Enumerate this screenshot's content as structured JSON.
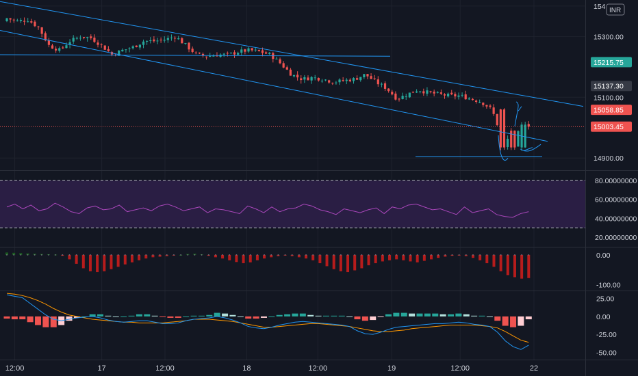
{
  "currency": "INR",
  "colors": {
    "background": "#131722",
    "grid": "#1e222d",
    "up": "#26a69a",
    "down": "#ef5350",
    "trendline": "#2196f3",
    "rsi_line": "#ab47bc",
    "rsi_band": "#2a1e44",
    "hist_pos": "#1b5e20",
    "hist_neg": "#b71c1c",
    "macd_line": "#2196f3",
    "signal_line": "#ff9800",
    "macd_pos": "#26a69a",
    "macd_pos_light": "#b2dfdb",
    "macd_neg": "#ef5350",
    "macd_neg_light": "#ffcdd2"
  },
  "x_axis_labels": [
    "12:00",
    "17",
    "12:00",
    "18",
    "12:00",
    "19",
    "12:00",
    "22"
  ],
  "price_axis_labels": [
    "154",
    "15300.00",
    "15100.00",
    "14900.00"
  ],
  "price_badges": [
    {
      "label": "15215.75",
      "value": 15215.75,
      "color": "#26a69a"
    },
    {
      "label": "15137.30",
      "value": 15137.3,
      "color": "#363a45"
    },
    {
      "label": "15058.85",
      "value": 15058.85,
      "color": "#ef5350"
    },
    {
      "label": "15003.45",
      "value": 15003.45,
      "color": "#ef5350"
    }
  ],
  "rsi_axis_labels": [
    "80.00000000",
    "60.00000000",
    "40.00000000",
    "20.00000000"
  ],
  "osc_axis_labels": [
    "0.00",
    "-100.00"
  ],
  "macd_axis_labels": [
    "25.00",
    "0.00",
    "-25.00",
    "-50.00"
  ],
  "chart_data": [
    {
      "type": "candlestick",
      "panel": "price",
      "ylim": [
        14860,
        15420
      ],
      "x_range": [
        0,
        100
      ],
      "day_markers": [
        {
          "label": "17",
          "x": 18
        },
        {
          "label": "18",
          "x": 45.5
        },
        {
          "label": "19",
          "x": 73
        },
        {
          "label": "22",
          "x": 100
        }
      ],
      "close_path": [
        [
          0,
          15360
        ],
        [
          2,
          15350
        ],
        [
          4,
          15355
        ],
        [
          6,
          15330
        ],
        [
          8,
          15270
        ],
        [
          10,
          15255
        ],
        [
          12,
          15285
        ],
        [
          14,
          15300
        ],
        [
          16,
          15295
        ],
        [
          18,
          15270
        ],
        [
          20,
          15240
        ],
        [
          22,
          15255
        ],
        [
          24,
          15265
        ],
        [
          26,
          15285
        ],
        [
          28,
          15285
        ],
        [
          30,
          15290
        ],
        [
          32,
          15300
        ],
        [
          34,
          15270
        ],
        [
          36,
          15240
        ],
        [
          38,
          15235
        ],
        [
          40,
          15240
        ],
        [
          42,
          15240
        ],
        [
          44,
          15250
        ],
        [
          46,
          15255
        ],
        [
          48,
          15250
        ],
        [
          50,
          15240
        ],
        [
          52,
          15210
        ],
        [
          54,
          15175
        ],
        [
          56,
          15160
        ],
        [
          58,
          15165
        ],
        [
          60,
          15160
        ],
        [
          62,
          15150
        ],
        [
          64,
          15155
        ],
        [
          66,
          15160
        ],
        [
          68,
          15175
        ],
        [
          70,
          15150
        ],
        [
          72,
          15130
        ],
        [
          74,
          15095
        ],
        [
          76,
          15110
        ],
        [
          78,
          15125
        ],
        [
          80,
          15115
        ],
        [
          82,
          15110
        ],
        [
          84,
          15105
        ],
        [
          86,
          15105
        ],
        [
          88,
          15095
        ],
        [
          90,
          15085
        ],
        [
          92,
          15060
        ],
        [
          94,
          14965
        ],
        [
          96,
          14960
        ],
        [
          98,
          15003
        ]
      ],
      "close_final": 15003.45,
      "horizontal_line_upper": 15240,
      "horizontal_line_lower": 14905
    },
    {
      "type": "line",
      "panel": "rsi",
      "title": "",
      "ylim": [
        10,
        90
      ],
      "band": [
        30,
        80
      ],
      "values": [
        52,
        55,
        50,
        54,
        48,
        50,
        56,
        52,
        47,
        45,
        51,
        53,
        49,
        50,
        54,
        47,
        49,
        51,
        48,
        53,
        55,
        52,
        48,
        50,
        52,
        46,
        50,
        49,
        47,
        45,
        53,
        50,
        46,
        52,
        47,
        50,
        51,
        55,
        53,
        49,
        47,
        44,
        50,
        48,
        46,
        49,
        51,
        45,
        52,
        50,
        54,
        55,
        52,
        49,
        50,
        47,
        44,
        52,
        46,
        48,
        50,
        44,
        42,
        41,
        45,
        47
      ]
    },
    {
      "type": "bar",
      "panel": "oscillator",
      "ylim": [
        -120,
        25
      ],
      "values": [
        8,
        7,
        6,
        5,
        4,
        3,
        2,
        1,
        -3,
        -15,
        -30,
        -45,
        -55,
        -58,
        -55,
        -48,
        -40,
        -32,
        -25,
        -18,
        -12,
        -8,
        -6,
        -4,
        -2,
        0,
        3,
        4,
        2,
        -3,
        -8,
        -12,
        -18,
        -24,
        -28,
        -25,
        -18,
        -12,
        -8,
        -4,
        -2,
        -4,
        -8,
        -12,
        -18,
        -28,
        -38,
        -48,
        -55,
        -58,
        -52,
        -45,
        -35,
        -28,
        -22,
        -18,
        -15,
        -18,
        -22,
        -25,
        -20,
        -15,
        -10,
        -6,
        -3,
        -2,
        -4,
        -10,
        -18,
        -28,
        -40,
        -55,
        -68,
        -75,
        -80,
        -78
      ]
    },
    {
      "type": "line",
      "panel": "macd",
      "ylim": [
        -60,
        35
      ],
      "macd": [
        30,
        28,
        26,
        18,
        10,
        2,
        -4,
        -6,
        -4,
        -2,
        -1,
        0,
        -2,
        -5,
        -7,
        -8,
        -7,
        -6,
        -6,
        -8,
        -10,
        -10,
        -9,
        -6,
        -4,
        -3,
        -2,
        0,
        -2,
        -5,
        -9,
        -14,
        -16,
        -17,
        -15,
        -12,
        -10,
        -8,
        -7,
        -8,
        -9,
        -10,
        -11,
        -12,
        -14,
        -20,
        -24,
        -25,
        -22,
        -18,
        -15,
        -14,
        -13,
        -12,
        -11,
        -10,
        -10,
        -9,
        -8,
        -9,
        -11,
        -12,
        -14,
        -22,
        -34,
        -42,
        -46,
        -40
      ],
      "signal": [
        32,
        31,
        29,
        26,
        22,
        17,
        11,
        6,
        2,
        0,
        -2,
        -4,
        -5,
        -6,
        -7,
        -8,
        -8,
        -9,
        -9,
        -9,
        -9,
        -8,
        -7,
        -6,
        -4,
        -4,
        -4,
        -5,
        -6,
        -7,
        -9,
        -11,
        -13,
        -15,
        -15,
        -14,
        -13,
        -12,
        -11,
        -10,
        -10,
        -11,
        -12,
        -13,
        -14,
        -16,
        -18,
        -20,
        -21,
        -21,
        -20,
        -19,
        -17,
        -16,
        -15,
        -14,
        -13,
        -12,
        -12,
        -12,
        -12,
        -13,
        -14,
        -16,
        -21,
        -27,
        -33,
        -36
      ],
      "histogram": [
        -3,
        -4,
        -4,
        -8,
        -12,
        -15,
        -15,
        -12,
        -6,
        -2,
        0,
        3,
        3,
        1,
        0,
        0,
        1,
        3,
        3,
        1,
        -1,
        -2,
        -2,
        0,
        1,
        1,
        2,
        5,
        4,
        2,
        0,
        -3,
        -3,
        -2,
        0,
        2,
        3,
        4,
        4,
        2,
        1,
        1,
        1,
        1,
        0,
        -4,
        -6,
        -5,
        -1,
        3,
        5,
        5,
        4,
        4,
        4,
        4,
        3,
        3,
        4,
        3,
        1,
        1,
        0,
        -6,
        -13,
        -15,
        -13,
        -4
      ]
    }
  ]
}
